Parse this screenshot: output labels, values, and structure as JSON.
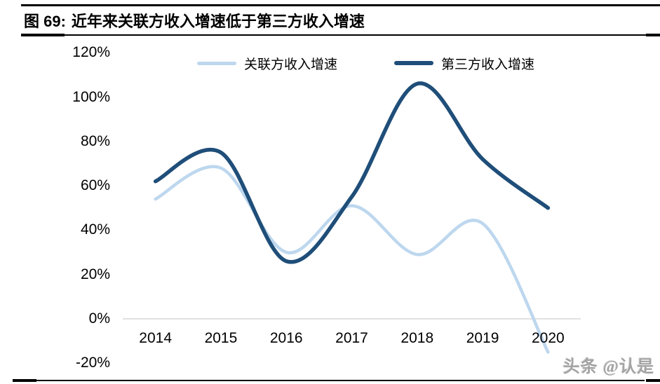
{
  "figure": {
    "title_prefix": "图 69:",
    "title_text": "近年来关联方收入增速低于第三方收入增速"
  },
  "watermark": "头条 @认是",
  "colors": {
    "related_series": "#BDD7EE",
    "third_party_series": "#1F4E79",
    "axis_line": "#D9D9D9",
    "text": "#000000",
    "rule": "#000000"
  },
  "chart_data": {
    "type": "line",
    "smooth": true,
    "gridlines": false,
    "legend_position": "top",
    "categories": [
      "2014",
      "2015",
      "2016",
      "2017",
      "2018",
      "2019",
      "2020"
    ],
    "series": [
      {
        "name": "关联方收入增速",
        "color": "#BDD7EE",
        "stroke_width": 4.5,
        "values_pct": [
          54,
          68,
          30,
          51,
          29,
          43,
          -15
        ]
      },
      {
        "name": "第三方收入增速",
        "color": "#1F4E79",
        "stroke_width": 5.5,
        "values_pct": [
          62,
          75,
          26,
          55,
          106,
          72,
          50
        ]
      }
    ],
    "y_axis": {
      "min": -20,
      "max": 120,
      "step": 20,
      "unit": "%",
      "tick_labels": [
        "120%",
        "100%",
        "80%",
        "60%",
        "40%",
        "20%",
        "0%",
        "-20%"
      ]
    },
    "x_axis_color": "#D9D9D9"
  }
}
